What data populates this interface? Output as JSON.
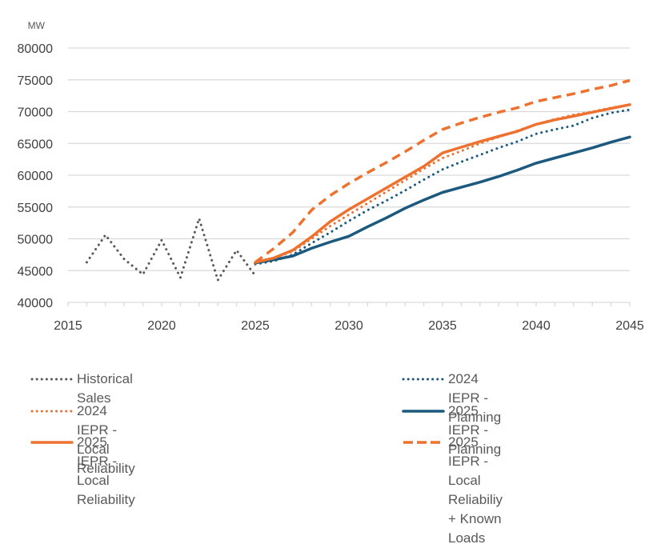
{
  "chart_data": {
    "type": "line",
    "title": "",
    "unit_label": "MW",
    "xlabel": "",
    "ylabel": "MW",
    "xlim": [
      2015,
      2045
    ],
    "ylim": [
      40000,
      80000
    ],
    "x_ticks": [
      "2015",
      "2020",
      "2025",
      "2030",
      "2035",
      "2040",
      "2045"
    ],
    "y_ticks": [
      "40000",
      "45000",
      "50000",
      "55000",
      "60000",
      "65000",
      "70000",
      "75000",
      "80000"
    ],
    "grid": "horizontal",
    "legend_position": "bottom",
    "series": [
      {
        "name": "Historical Sales",
        "color": "#595959",
        "style": "dotted",
        "x": [
          2016,
          2017,
          2018,
          2019,
          2020,
          2021,
          2022,
          2023,
          2024,
          2025
        ],
        "values": [
          46300,
          50600,
          46800,
          44400,
          49800,
          43900,
          53200,
          43500,
          48200,
          44200
        ]
      },
      {
        "name": "2024 IEPR - Planning",
        "color": "#1b5a7e",
        "style": "dotted",
        "x": [
          2025,
          2026,
          2027,
          2028,
          2029,
          2030,
          2031,
          2032,
          2033,
          2034,
          2035,
          2036,
          2037,
          2038,
          2039,
          2040,
          2041,
          2042,
          2043,
          2044,
          2045
        ],
        "values": [
          46000,
          46500,
          47500,
          49300,
          51000,
          52800,
          54500,
          56000,
          57600,
          59300,
          60900,
          62100,
          63200,
          64300,
          65300,
          66500,
          67200,
          67800,
          69000,
          69800,
          70300
        ]
      },
      {
        "name": "2024 IEPR - Local Reliability",
        "color": "#ed7230",
        "style": "dotted",
        "x": [
          2025,
          2026,
          2027,
          2028,
          2029,
          2030,
          2031,
          2032,
          2033,
          2034,
          2035,
          2036,
          2037,
          2038,
          2039,
          2040,
          2041,
          2042,
          2043,
          2044,
          2045
        ],
        "values": [
          46100,
          47000,
          48000,
          50000,
          52000,
          53800,
          55600,
          57400,
          59200,
          61000,
          62700,
          63800,
          65000,
          66000,
          67000,
          68000,
          68800,
          69500,
          70000,
          70600,
          71100
        ]
      },
      {
        "name": "2025 IEPR - Planning",
        "color": "#1b5a7e",
        "style": "solid",
        "x": [
          2025,
          2026,
          2027,
          2028,
          2029,
          2030,
          2031,
          2032,
          2033,
          2034,
          2035,
          2036,
          2037,
          2038,
          2039,
          2040,
          2041,
          2042,
          2043,
          2044,
          2045
        ],
        "values": [
          46200,
          46700,
          47300,
          48500,
          49500,
          50400,
          51900,
          53300,
          54800,
          56100,
          57300,
          58100,
          58900,
          59800,
          60800,
          61900,
          62700,
          63500,
          64300,
          65200,
          66000
        ]
      },
      {
        "name": "2025 IEPR - Local Reliability",
        "color": "#ed7230",
        "style": "solid",
        "x": [
          2025,
          2026,
          2027,
          2028,
          2029,
          2030,
          2031,
          2032,
          2033,
          2034,
          2035,
          2036,
          2037,
          2038,
          2039,
          2040,
          2041,
          2042,
          2043,
          2044,
          2045
        ],
        "values": [
          46300,
          47000,
          48200,
          50300,
          52700,
          54600,
          56300,
          58000,
          59700,
          61400,
          63500,
          64400,
          65300,
          66100,
          66900,
          68000,
          68700,
          69300,
          69900,
          70500,
          71100
        ]
      },
      {
        "name": "2025 IEPR - Local Reliabiliy\n+ Known Loads",
        "color": "#ed7230",
        "style": "dashed",
        "x": [
          2025,
          2026,
          2027,
          2028,
          2029,
          2030,
          2031,
          2032,
          2033,
          2034,
          2035,
          2036,
          2037,
          2038,
          2039,
          2040,
          2041,
          2042,
          2043,
          2044,
          2045
        ],
        "values": [
          46300,
          48500,
          51000,
          54500,
          56800,
          58700,
          60400,
          62000,
          63700,
          65500,
          67200,
          68200,
          69100,
          69900,
          70600,
          71600,
          72200,
          72800,
          73500,
          74100,
          74900
        ]
      }
    ],
    "legend": [
      {
        "label": "Historical Sales",
        "series": 0
      },
      {
        "label": "2024 IEPR - Planning",
        "series": 1
      },
      {
        "label": "2024 IEPR - Local Reliability",
        "series": 2
      },
      {
        "label": "2025 IEPR - Planning",
        "series": 3
      },
      {
        "label": "2025 IEPR - Local Reliability",
        "series": 4
      },
      {
        "label": "2025 IEPR - Local Reliabiliy\n+ Known Loads",
        "series": 5
      }
    ]
  }
}
